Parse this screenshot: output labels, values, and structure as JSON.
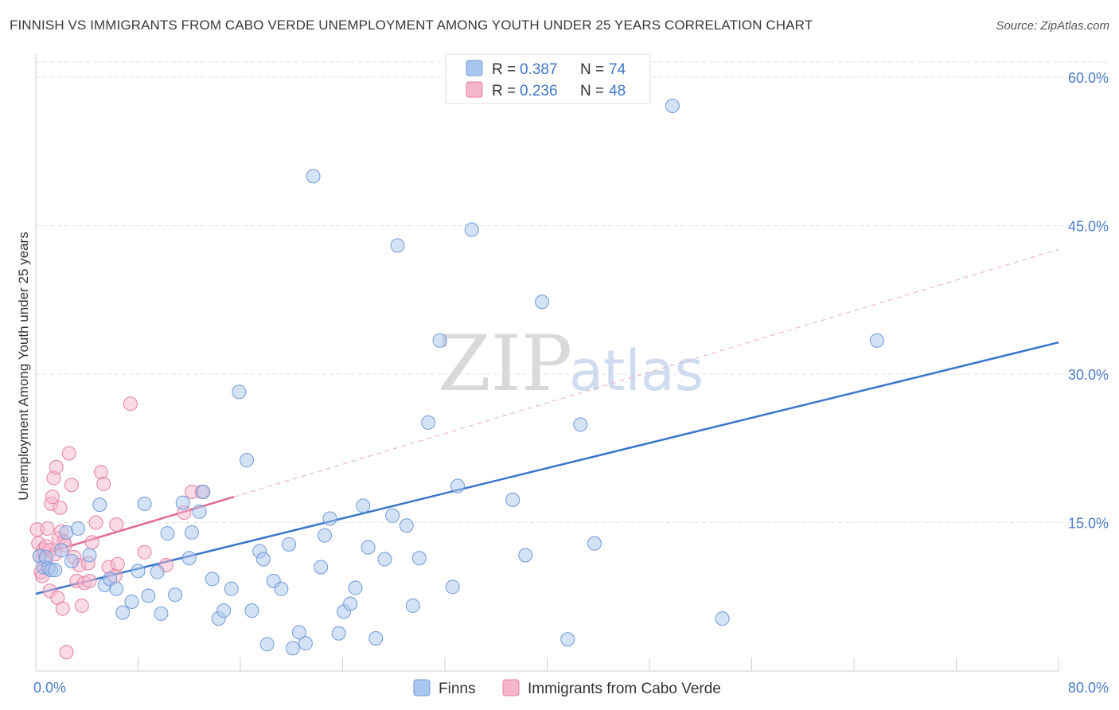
{
  "title": "FINNISH VS IMMIGRANTS FROM CABO VERDE UNEMPLOYMENT AMONG YOUTH UNDER 25 YEARS CORRELATION CHART",
  "source": "Source: ZipAtlas.com",
  "watermark": {
    "zip": "ZIP",
    "atlas": "atlas"
  },
  "colors": {
    "finns": "#a9c6ee",
    "finns_stroke": "#6f9ad8",
    "finns_line": "#3a76cc",
    "cabo": "#f5b6ca",
    "cabo_stroke": "#e77fa2",
    "cabo_line": "#e06a92",
    "grid": "#e3e3e3",
    "tick_label": "#4a7cc9"
  },
  "legend_box": {
    "rows": [
      {
        "r_label": "R = ",
        "r_value": "0.387",
        "n_label": "N = ",
        "n_value": "74",
        "series": "finns"
      },
      {
        "r_label": "R = ",
        "r_value": "0.236",
        "n_label": "N = ",
        "n_value": "48",
        "series": "cabo"
      }
    ]
  },
  "chart_data": {
    "type": "scatter",
    "title": "FINNISH VS IMMIGRANTS FROM CABO VERDE UNEMPLOYMENT AMONG YOUTH UNDER 25 YEARS CORRELATION CHART",
    "xlabel": "",
    "ylabel": "Unemployment Among Youth under 25 years",
    "xlim": [
      0,
      80
    ],
    "ylim": [
      0,
      60
    ],
    "x_tick_labels": [
      "0.0%",
      "80.0%"
    ],
    "y_ticks": [
      15,
      30,
      45,
      60
    ],
    "y_tick_labels": [
      "15.0%",
      "30.0%",
      "45.0%",
      "60.0%"
    ],
    "grid": true,
    "legend": "bottom-center",
    "series": [
      {
        "name": "Finns",
        "r": 0.387,
        "n": 74,
        "trend": {
          "x": [
            0,
            80
          ],
          "y": [
            7.8,
            33.2
          ],
          "style": "solid"
        },
        "points": [
          [
            0.3,
            11.6
          ],
          [
            0.6,
            10.5
          ],
          [
            0.8,
            11.5
          ],
          [
            1.0,
            10.4
          ],
          [
            1.2,
            10.2
          ],
          [
            1.5,
            10.2
          ],
          [
            2.0,
            12.2
          ],
          [
            2.4,
            14.0
          ],
          [
            2.8,
            11.1
          ],
          [
            3.3,
            14.4
          ],
          [
            4.2,
            11.7
          ],
          [
            5.0,
            16.8
          ],
          [
            5.4,
            8.7
          ],
          [
            5.8,
            9.3
          ],
          [
            6.3,
            8.3
          ],
          [
            6.8,
            5.9
          ],
          [
            7.5,
            7.0
          ],
          [
            8.0,
            10.1
          ],
          [
            8.5,
            16.9
          ],
          [
            8.8,
            7.6
          ],
          [
            9.5,
            10.0
          ],
          [
            9.8,
            5.8
          ],
          [
            10.3,
            13.9
          ],
          [
            10.9,
            7.7
          ],
          [
            11.5,
            17.0
          ],
          [
            12.0,
            11.4
          ],
          [
            12.2,
            14.0
          ],
          [
            12.8,
            16.1
          ],
          [
            13.1,
            18.1
          ],
          [
            13.8,
            9.3
          ],
          [
            14.3,
            5.3
          ],
          [
            14.7,
            6.1
          ],
          [
            15.3,
            8.3
          ],
          [
            15.9,
            28.2
          ],
          [
            16.5,
            21.3
          ],
          [
            16.9,
            6.1
          ],
          [
            17.5,
            12.1
          ],
          [
            17.8,
            11.3
          ],
          [
            18.1,
            2.7
          ],
          [
            18.6,
            9.1
          ],
          [
            19.2,
            8.3
          ],
          [
            19.8,
            12.8
          ],
          [
            20.1,
            2.3
          ],
          [
            20.6,
            3.9
          ],
          [
            21.1,
            2.8
          ],
          [
            21.7,
            50.0
          ],
          [
            22.3,
            10.5
          ],
          [
            22.6,
            13.7
          ],
          [
            23.0,
            15.4
          ],
          [
            23.7,
            3.8
          ],
          [
            24.1,
            6.0
          ],
          [
            24.6,
            6.8
          ],
          [
            25.0,
            8.4
          ],
          [
            25.6,
            16.7
          ],
          [
            26.0,
            12.5
          ],
          [
            26.6,
            3.3
          ],
          [
            27.3,
            11.3
          ],
          [
            27.9,
            15.7
          ],
          [
            28.3,
            43.0
          ],
          [
            29.0,
            14.7
          ],
          [
            29.5,
            6.6
          ],
          [
            30.0,
            11.4
          ],
          [
            30.7,
            25.1
          ],
          [
            31.6,
            33.4
          ],
          [
            32.6,
            8.5
          ],
          [
            33.0,
            18.7
          ],
          [
            34.1,
            44.6
          ],
          [
            37.3,
            17.3
          ],
          [
            38.3,
            11.7
          ],
          [
            39.6,
            37.3
          ],
          [
            41.6,
            3.2
          ],
          [
            42.6,
            24.9
          ],
          [
            43.7,
            12.9
          ],
          [
            49.8,
            57.1
          ],
          [
            53.7,
            5.3
          ],
          [
            65.8,
            33.4
          ]
        ]
      },
      {
        "name": "Immigrants from Cabo Verde",
        "r": 0.236,
        "n": 48,
        "trend": {
          "x": [
            0,
            15.5
          ],
          "y": [
            11.6,
            17.6
          ],
          "style": "solid",
          "dashed_extension": {
            "x": [
              15.5,
              80
            ],
            "y": [
              17.6,
              42.6
            ]
          }
        },
        "points": [
          [
            0.1,
            14.3
          ],
          [
            0.2,
            12.9
          ],
          [
            0.3,
            11.6
          ],
          [
            0.4,
            10.0
          ],
          [
            0.5,
            9.6
          ],
          [
            0.6,
            12.3
          ],
          [
            0.7,
            11.2
          ],
          [
            0.8,
            12.6
          ],
          [
            0.9,
            14.4
          ],
          [
            1.0,
            10.4
          ],
          [
            1.1,
            8.1
          ],
          [
            1.1,
            12.2
          ],
          [
            1.2,
            16.9
          ],
          [
            1.3,
            17.6
          ],
          [
            1.4,
            19.5
          ],
          [
            1.5,
            11.8
          ],
          [
            1.6,
            20.6
          ],
          [
            1.7,
            7.4
          ],
          [
            1.8,
            13.4
          ],
          [
            1.9,
            16.5
          ],
          [
            2.0,
            14.1
          ],
          [
            2.1,
            6.3
          ],
          [
            2.2,
            13.1
          ],
          [
            2.3,
            12.7
          ],
          [
            2.4,
            1.9
          ],
          [
            2.6,
            22.0
          ],
          [
            2.8,
            18.8
          ],
          [
            3.0,
            11.5
          ],
          [
            3.2,
            9.1
          ],
          [
            3.4,
            10.7
          ],
          [
            3.6,
            6.6
          ],
          [
            3.8,
            8.9
          ],
          [
            4.1,
            10.9
          ],
          [
            4.2,
            9.1
          ],
          [
            4.4,
            13.0
          ],
          [
            4.7,
            15.0
          ],
          [
            5.1,
            20.1
          ],
          [
            5.3,
            18.9
          ],
          [
            5.7,
            10.5
          ],
          [
            6.2,
            9.6
          ],
          [
            6.3,
            14.8
          ],
          [
            6.4,
            10.8
          ],
          [
            7.4,
            27.0
          ],
          [
            8.5,
            12.0
          ],
          [
            10.2,
            10.7
          ],
          [
            11.6,
            16.0
          ],
          [
            12.2,
            18.1
          ],
          [
            13.0,
            18.1
          ]
        ]
      }
    ]
  }
}
